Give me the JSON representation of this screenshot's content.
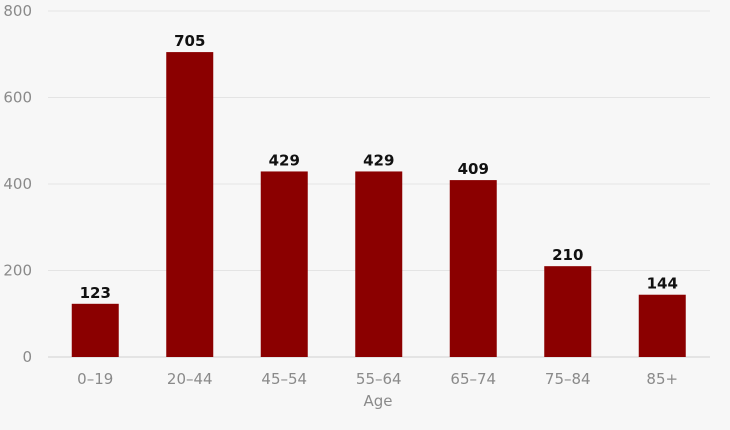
{
  "chart_data": {
    "type": "bar",
    "categories": [
      "0–19",
      "20–44",
      "45–54",
      "55–64",
      "65–74",
      "75–84",
      "85+"
    ],
    "values": [
      123,
      705,
      429,
      429,
      409,
      210,
      144
    ],
    "value_labels": [
      "123",
      "705",
      "429",
      "429",
      "409",
      "210",
      "144"
    ],
    "title": "",
    "xlabel": "Age",
    "ylabel": "",
    "ylim": [
      0,
      800
    ],
    "yticks": [
      0,
      200,
      400,
      600,
      800
    ],
    "ytick_labels": [
      "0",
      "200",
      "400",
      "600",
      "800"
    ],
    "grid": true,
    "bar_color": "#8b0000"
  }
}
